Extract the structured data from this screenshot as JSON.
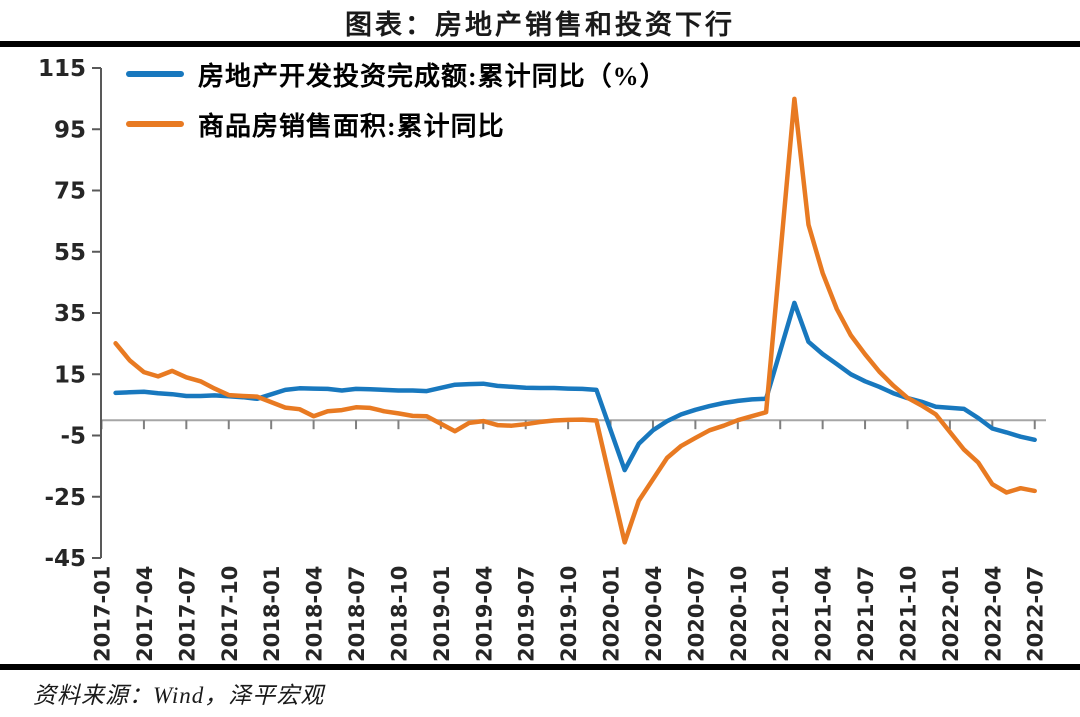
{
  "title": "图表：房地产销售和投资下行",
  "source": "资料来源：Wind，泽平宏观",
  "legend": {
    "items": [
      {
        "label": "房地产开发投资完成额:累计同比（%）"
      },
      {
        "label": "商品房销售面积:累计同比"
      }
    ]
  },
  "chart_data": {
    "type": "line",
    "title": "图表：房地产销售和投资下行",
    "xlabel": "",
    "ylabel": "",
    "ylim": [
      -45,
      115
    ],
    "yticks": [
      115,
      95,
      75,
      55,
      35,
      15,
      -5,
      -25,
      -45
    ],
    "grid": false,
    "zero_line": true,
    "legend_position": "top-left",
    "axis_color": "#595959",
    "zero_line_color": "#A6A6A6",
    "tick_label_color": "#262626",
    "xtick_labels": [
      "2017-01",
      "2017-04",
      "2017-07",
      "2017-10",
      "2018-01",
      "2018-04",
      "2018-07",
      "2018-10",
      "2019-01",
      "2019-04",
      "2019-07",
      "2019-10",
      "2020-01",
      "2020-04",
      "2020-07",
      "2020-10",
      "2021-01",
      "2021-04",
      "2021-07",
      "2021-10",
      "2022-01",
      "2022-04",
      "2022-07"
    ],
    "x": [
      "2017-02",
      "2017-03",
      "2017-04",
      "2017-05",
      "2017-06",
      "2017-07",
      "2017-08",
      "2017-09",
      "2017-10",
      "2017-11",
      "2017-12",
      "2018-02",
      "2018-03",
      "2018-04",
      "2018-05",
      "2018-06",
      "2018-07",
      "2018-08",
      "2018-09",
      "2018-10",
      "2018-11",
      "2018-12",
      "2019-02",
      "2019-03",
      "2019-04",
      "2019-05",
      "2019-06",
      "2019-07",
      "2019-08",
      "2019-09",
      "2019-10",
      "2019-11",
      "2019-12",
      "2020-02",
      "2020-03",
      "2020-04",
      "2020-05",
      "2020-06",
      "2020-07",
      "2020-08",
      "2020-09",
      "2020-10",
      "2020-11",
      "2020-12",
      "2021-02",
      "2021-03",
      "2021-04",
      "2021-05",
      "2021-06",
      "2021-07",
      "2021-08",
      "2021-09",
      "2021-10",
      "2021-11",
      "2021-12",
      "2022-02",
      "2022-03",
      "2022-04",
      "2022-05",
      "2022-06",
      "2022-07"
    ],
    "series": [
      {
        "name": "房地产开发投资完成额:累计同比（%）",
        "color": "#1878BE",
        "values": [
          8.9,
          9.1,
          9.3,
          8.8,
          8.5,
          7.9,
          7.9,
          8.1,
          7.8,
          7.5,
          7.0,
          9.9,
          10.4,
          10.3,
          10.2,
          9.7,
          10.2,
          10.1,
          9.9,
          9.7,
          9.7,
          9.5,
          11.6,
          11.8,
          11.9,
          11.2,
          10.9,
          10.6,
          10.5,
          10.5,
          10.3,
          10.2,
          9.9,
          -16.3,
          -7.7,
          -3.3,
          -0.3,
          1.9,
          3.4,
          4.6,
          5.6,
          6.3,
          6.8,
          7.0,
          38.3,
          25.6,
          21.6,
          18.3,
          15.0,
          12.7,
          10.9,
          8.8,
          7.2,
          6.0,
          4.4,
          3.7,
          0.7,
          -2.7,
          -4.0,
          -5.4,
          -6.4
        ]
      },
      {
        "name": "商品房销售面积:累计同比",
        "color": "#E87A22",
        "values": [
          25.1,
          19.5,
          15.7,
          14.3,
          16.1,
          14.0,
          12.7,
          10.3,
          8.2,
          7.9,
          7.7,
          4.1,
          3.6,
          1.3,
          2.9,
          3.3,
          4.2,
          4.0,
          2.9,
          2.2,
          1.4,
          1.3,
          -3.6,
          -0.9,
          -0.3,
          -1.6,
          -1.8,
          -1.3,
          -0.6,
          -0.1,
          0.1,
          0.2,
          -0.1,
          -39.9,
          -26.3,
          -19.3,
          -12.3,
          -8.4,
          -5.8,
          -3.3,
          -1.8,
          0.0,
          1.3,
          2.6,
          104.9,
          63.8,
          48.1,
          36.3,
          27.7,
          21.5,
          15.9,
          11.3,
          7.3,
          4.8,
          1.9,
          -9.6,
          -13.8,
          -20.9,
          -23.6,
          -22.2,
          -23.1
        ]
      }
    ]
  }
}
